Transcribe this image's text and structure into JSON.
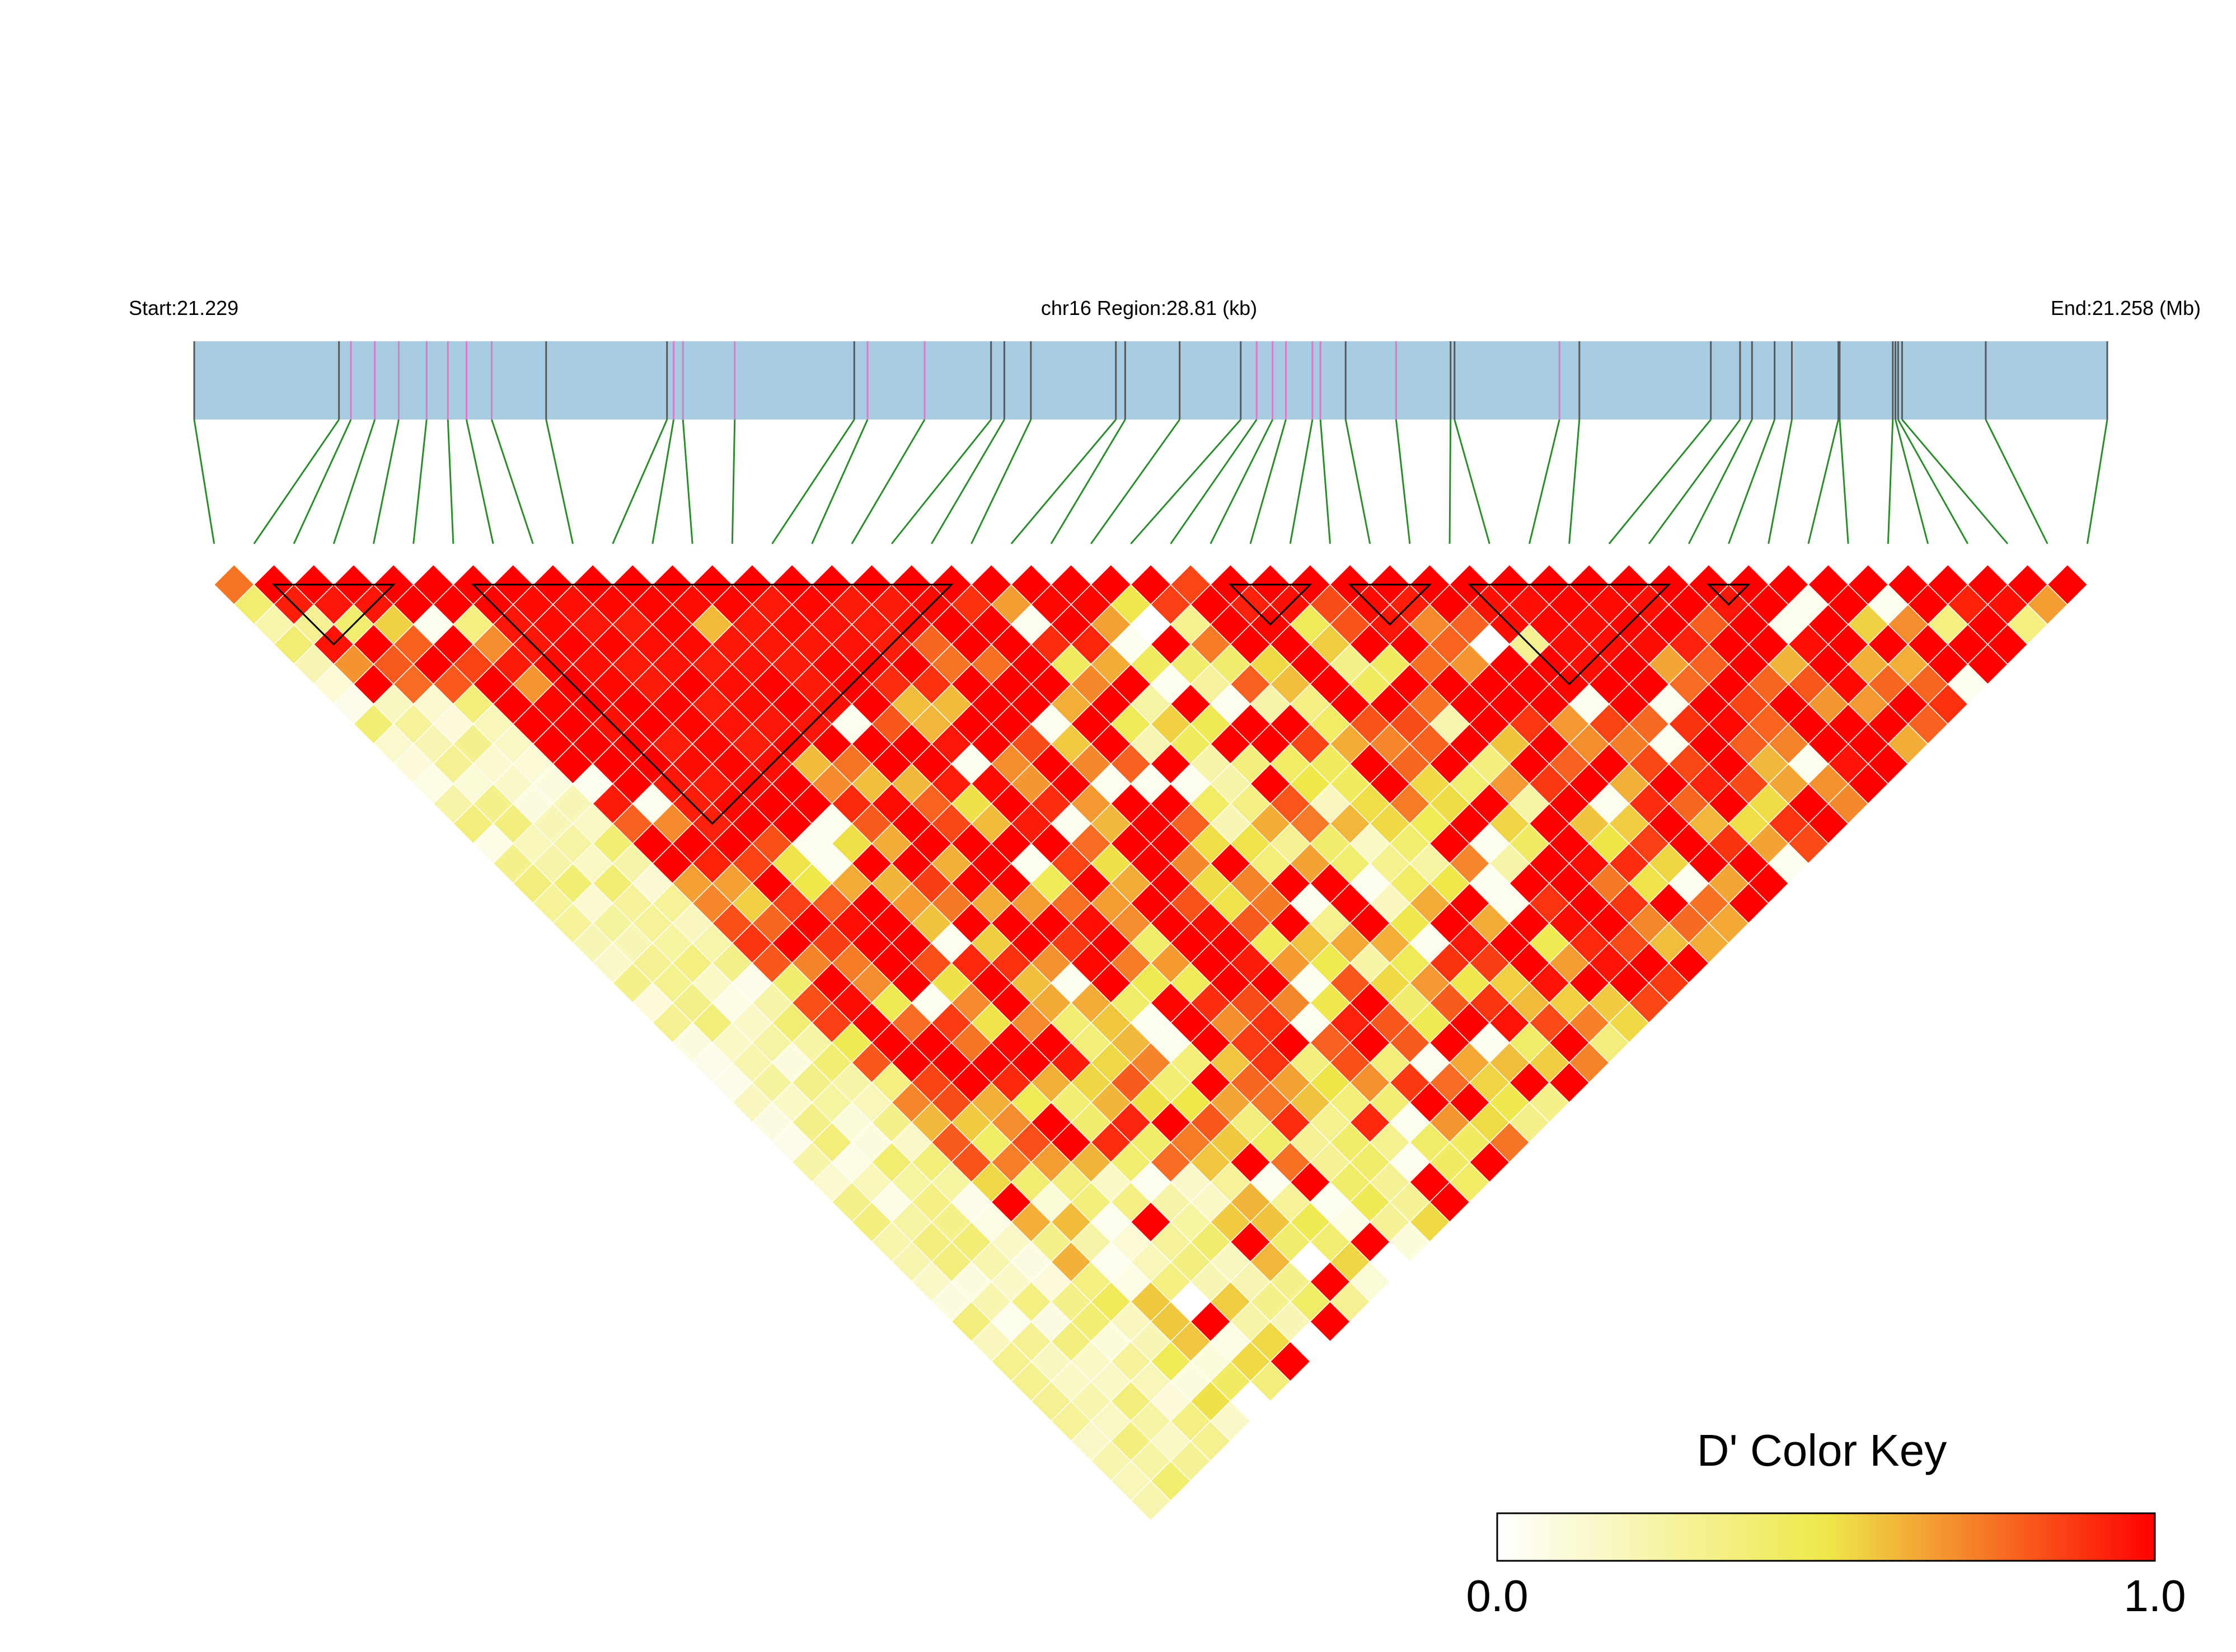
{
  "chart_data": {
    "type": "heatmap",
    "subtype": "ld-triangle",
    "header": {
      "start_label": "Start:21.229",
      "region_label": "chr16 Region:28.81 (kb)",
      "end_label": "End:21.258 (Mb)"
    },
    "snp_count": 48,
    "snp_positions_kb": [
      0.0,
      2.18,
      2.36,
      2.72,
      3.08,
      3.5,
      3.82,
      4.1,
      4.48,
      5.3,
      7.12,
      7.22,
      7.36,
      8.14,
      9.94,
      10.14,
      11.0,
      12.0,
      12.2,
      12.6,
      13.88,
      14.02,
      14.84,
      15.76,
      16.0,
      16.24,
      16.44,
      16.84,
      16.96,
      17.34,
      18.1,
      18.92,
      18.98,
      20.56,
      20.86,
      22.84,
      23.28,
      23.46,
      23.8,
      24.06,
      24.76,
      24.78,
      25.58,
      25.62,
      25.66,
      25.72,
      26.98,
      28.81
    ],
    "blocks": [
      [
        1,
        5
      ],
      [
        6,
        19
      ],
      [
        25,
        28
      ],
      [
        28,
        31
      ],
      [
        31,
        37
      ],
      [
        37,
        39
      ]
    ],
    "color_key": {
      "title": "D' Color Key",
      "min_label": "0.0",
      "max_label": "1.0",
      "min": 0.0,
      "max": 1.0,
      "colors": [
        "#ffffff",
        "#eee84a",
        "#ff0000"
      ]
    },
    "colors": {
      "track_fill": "#a8cde2",
      "track_line": "#595959",
      "snp_pink": "#e077c9",
      "connector": "#2a8c2a",
      "block_outline": "#000000",
      "cell_border": "#ffffff"
    },
    "dprime_description": "Pairwise D' values for 48 SNPs; near-adjacent pairs are mostly high (red), long-range pairs in the lower-left edge are low (white/yellow).",
    "dprime_matrix_generation": "procedural",
    "dprime_adjacent": [
      0.75,
      1.0,
      1.0,
      1.0,
      1.0,
      1.0,
      1.0,
      1.0,
      1.0,
      1.0,
      1.0,
      1.0,
      1.0,
      1.0,
      1.0,
      1.0,
      1.0,
      1.0,
      1.0,
      1.0,
      1.0,
      1.0,
      1.0,
      1.0,
      0.85,
      1.0,
      1.0,
      1.0,
      1.0,
      1.0,
      1.0,
      1.0,
      1.0,
      1.0,
      1.0,
      1.0,
      1.0,
      1.0,
      1.0,
      1.0,
      1.0,
      1.0,
      1.0,
      1.0,
      1.0,
      1.0,
      1.0
    ],
    "dprime_low_cells": [
      [
        1,
        4,
        0.3
      ],
      [
        2,
        5,
        0.4
      ],
      [
        5,
        8,
        0.35
      ],
      [
        4,
        7,
        0.05
      ],
      [
        3,
        6,
        0.55
      ],
      [
        30,
        34,
        0.0
      ],
      [
        22,
        25,
        0.0
      ],
      [
        31,
        35,
        0.3
      ],
      [
        42,
        45,
        0.35
      ],
      [
        44,
        47,
        0.35
      ],
      [
        40,
        43,
        0.55
      ],
      [
        11,
        14,
        0.6
      ]
    ]
  }
}
